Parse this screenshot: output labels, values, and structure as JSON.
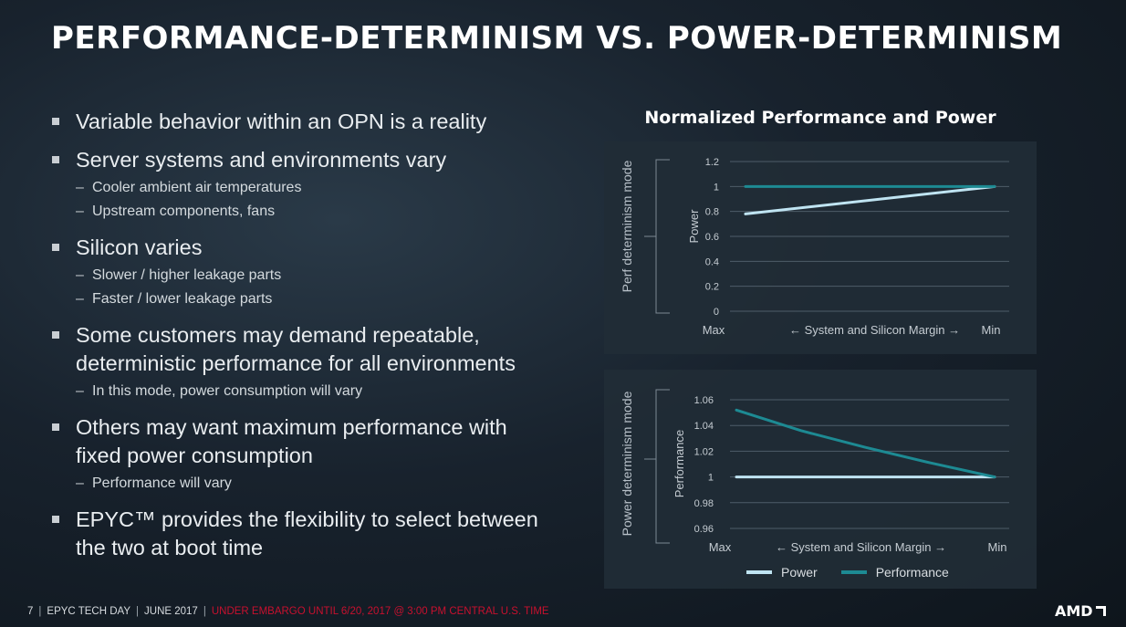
{
  "slide": {
    "title": "PERFORMANCE-DETERMINISM VS. POWER-DETERMINISM",
    "bullets": [
      {
        "lines": [
          "Variable behavior within an OPN is a reality"
        ],
        "subs": []
      },
      {
        "lines": [
          "Server systems and environments vary"
        ],
        "subs": [
          "Cooler ambient air temperatures",
          "Upstream components, fans"
        ]
      },
      {
        "lines": [
          "Silicon varies"
        ],
        "subs": [
          "Slower / higher leakage parts",
          "Faster / lower leakage parts"
        ]
      },
      {
        "lines": [
          "Some customers may demand repeatable,",
          "deterministic performance for all environments"
        ],
        "subs": [
          "In this mode, power consumption will vary"
        ]
      },
      {
        "lines": [
          "Others may want maximum performance with",
          "fixed power consumption"
        ],
        "subs": [
          "Performance will vary"
        ]
      },
      {
        "lines": [
          "EPYC™ provides the flexibility to select between",
          "the two at boot time"
        ],
        "subs": []
      }
    ],
    "sub_dash": "–"
  },
  "chart_heading": "Normalized Performance and Power",
  "chart_data": [
    {
      "type": "line",
      "mode_label": "Perf determinism mode",
      "ylabel": "Power",
      "xlabel": "← System and Silicon Margin →",
      "x_ticks": [
        "Max",
        "Min"
      ],
      "x": [
        0,
        1
      ],
      "ylim": [
        0,
        1.2
      ],
      "y_ticks": [
        "0",
        "0.2",
        "0.4",
        "0.6",
        "0.8",
        "1",
        "1.2"
      ],
      "grid": true,
      "series": [
        {
          "name": "Power",
          "color": "#bfe4f2",
          "values": [
            0.78,
            1.0
          ]
        },
        {
          "name": "Performance",
          "color": "#1d8a93",
          "values": [
            1.0,
            1.0
          ]
        }
      ]
    },
    {
      "type": "line",
      "mode_label": "Power determinism mode",
      "ylabel": "Performance",
      "xlabel": "← System and Silicon Margin →",
      "x_ticks": [
        "Max",
        "Min"
      ],
      "x": [
        0,
        0.25,
        0.5,
        0.75,
        1
      ],
      "ylim": [
        0.96,
        1.06
      ],
      "y_ticks": [
        "0.96",
        "0.98",
        "1",
        "1.02",
        "1.04",
        "1.06"
      ],
      "grid": true,
      "series": [
        {
          "name": "Power",
          "color": "#bfe4f2",
          "values": [
            1.0,
            1.0,
            1.0,
            1.0,
            1.0
          ]
        },
        {
          "name": "Performance",
          "color": "#1d8a93",
          "values": [
            1.052,
            1.036,
            1.023,
            1.011,
            1.0
          ]
        }
      ]
    }
  ],
  "legend": [
    {
      "label": "Power",
      "color": "#bfe4f2"
    },
    {
      "label": "Performance",
      "color": "#1d8a93"
    }
  ],
  "footer": {
    "page": "7",
    "event": "EPYC TECH DAY",
    "date": "JUNE 2017",
    "embargo": "UNDER EMBARGO UNTIL 6/20, 2017 @ 3:00 PM CENTRAL U.S. TIME",
    "separator": "|"
  },
  "logo": {
    "text": "AMD"
  }
}
